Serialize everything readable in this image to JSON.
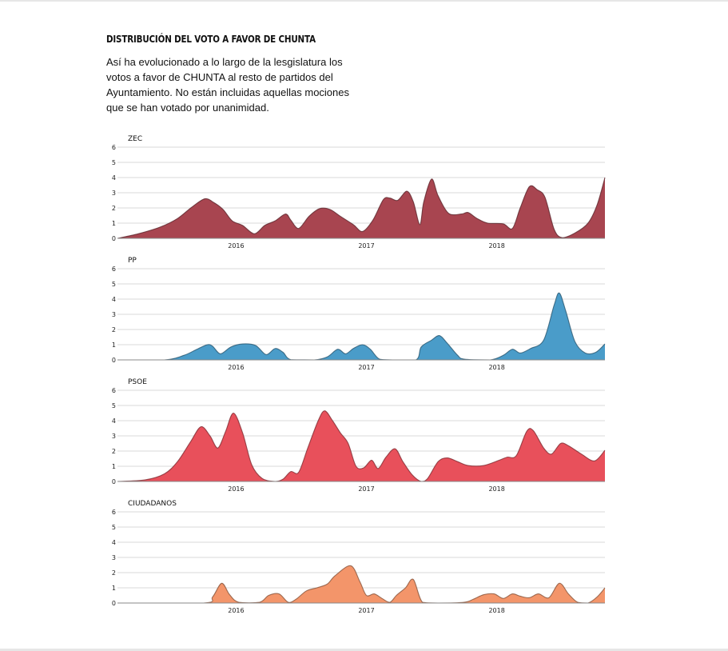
{
  "header": {
    "title": "Distribución del voto a favor de CHUNTA",
    "subtitle": "Así ha evolucionado a lo largo de la lesgislatura los votos a favor de CHUNTA al resto de partidos del Ayuntamiento. No están incluidas aquellas mociones que se han votado por unanimidad."
  },
  "chart_data": {
    "type": "area",
    "x_ticks": [
      {
        "label": "2016",
        "x": 2016.0
      },
      {
        "label": "2017",
        "x": 2017.0
      },
      {
        "label": "2018",
        "x": 2018.0
      }
    ],
    "xlim": [
      2015.09,
      2018.83
    ],
    "ylim": [
      0,
      6
    ],
    "y_ticks": [
      0,
      1,
      2,
      3,
      4,
      5,
      6
    ],
    "grid": true,
    "panels": [
      {
        "name": "ZEC",
        "color": "#a84550",
        "points": [
          [
            2015.09,
            0.0
          ],
          [
            2015.25,
            0.3
          ],
          [
            2015.42,
            0.75
          ],
          [
            2015.55,
            1.3
          ],
          [
            2015.66,
            2.05
          ],
          [
            2015.76,
            2.6
          ],
          [
            2015.83,
            2.35
          ],
          [
            2015.9,
            1.9
          ],
          [
            2015.97,
            1.15
          ],
          [
            2016.05,
            0.85
          ],
          [
            2016.14,
            0.3
          ],
          [
            2016.22,
            0.85
          ],
          [
            2016.3,
            1.15
          ],
          [
            2016.38,
            1.6
          ],
          [
            2016.42,
            1.2
          ],
          [
            2016.48,
            0.65
          ],
          [
            2016.56,
            1.45
          ],
          [
            2016.64,
            1.95
          ],
          [
            2016.72,
            1.9
          ],
          [
            2016.8,
            1.45
          ],
          [
            2016.9,
            0.9
          ],
          [
            2016.97,
            0.45
          ],
          [
            2017.05,
            1.2
          ],
          [
            2017.13,
            2.55
          ],
          [
            2017.18,
            2.65
          ],
          [
            2017.24,
            2.5
          ],
          [
            2017.31,
            3.1
          ],
          [
            2017.36,
            2.4
          ],
          [
            2017.41,
            0.9
          ],
          [
            2017.44,
            2.4
          ],
          [
            2017.5,
            3.9
          ],
          [
            2017.55,
            2.8
          ],
          [
            2017.63,
            1.65
          ],
          [
            2017.73,
            1.6
          ],
          [
            2017.78,
            1.7
          ],
          [
            2017.85,
            1.3
          ],
          [
            2017.93,
            1.0
          ],
          [
            2018.05,
            0.95
          ],
          [
            2018.12,
            0.65
          ],
          [
            2018.18,
            2.0
          ],
          [
            2018.25,
            3.4
          ],
          [
            2018.31,
            3.2
          ],
          [
            2018.37,
            2.7
          ],
          [
            2018.44,
            0.6
          ],
          [
            2018.5,
            0.05
          ],
          [
            2018.6,
            0.35
          ],
          [
            2018.7,
            1.0
          ],
          [
            2018.77,
            2.2
          ],
          [
            2018.83,
            4.0
          ]
        ]
      },
      {
        "name": "PP",
        "color": "#4a9cc9",
        "points": [
          [
            2015.09,
            0.0
          ],
          [
            2015.45,
            0.0
          ],
          [
            2015.6,
            0.3
          ],
          [
            2015.7,
            0.7
          ],
          [
            2015.78,
            1.0
          ],
          [
            2015.82,
            0.9
          ],
          [
            2015.88,
            0.4
          ],
          [
            2015.96,
            0.85
          ],
          [
            2016.05,
            1.05
          ],
          [
            2016.15,
            0.95
          ],
          [
            2016.23,
            0.35
          ],
          [
            2016.3,
            0.75
          ],
          [
            2016.36,
            0.5
          ],
          [
            2016.42,
            0.02
          ],
          [
            2016.6,
            0.0
          ],
          [
            2016.7,
            0.2
          ],
          [
            2016.78,
            0.7
          ],
          [
            2016.84,
            0.4
          ],
          [
            2016.9,
            0.75
          ],
          [
            2016.97,
            1.0
          ],
          [
            2017.03,
            0.7
          ],
          [
            2017.1,
            0.05
          ],
          [
            2017.2,
            0.0
          ],
          [
            2017.38,
            0.0
          ],
          [
            2017.42,
            0.85
          ],
          [
            2017.5,
            1.3
          ],
          [
            2017.56,
            1.6
          ],
          [
            2017.62,
            1.1
          ],
          [
            2017.7,
            0.3
          ],
          [
            2017.75,
            0.05
          ],
          [
            2017.95,
            0.0
          ],
          [
            2018.05,
            0.3
          ],
          [
            2018.12,
            0.7
          ],
          [
            2018.18,
            0.45
          ],
          [
            2018.26,
            0.75
          ],
          [
            2018.36,
            1.3
          ],
          [
            2018.44,
            3.6
          ],
          [
            2018.48,
            4.4
          ],
          [
            2018.53,
            3.2
          ],
          [
            2018.6,
            1.2
          ],
          [
            2018.68,
            0.45
          ],
          [
            2018.76,
            0.5
          ],
          [
            2018.83,
            1.05
          ]
        ]
      },
      {
        "name": "PSOE",
        "color": "#e8505b",
        "points": [
          [
            2015.09,
            0.0
          ],
          [
            2015.3,
            0.1
          ],
          [
            2015.45,
            0.5
          ],
          [
            2015.55,
            1.3
          ],
          [
            2015.65,
            2.6
          ],
          [
            2015.73,
            3.6
          ],
          [
            2015.8,
            3.0
          ],
          [
            2015.86,
            2.2
          ],
          [
            2015.92,
            3.3
          ],
          [
            2015.98,
            4.5
          ],
          [
            2016.05,
            3.2
          ],
          [
            2016.12,
            1.1
          ],
          [
            2016.2,
            0.2
          ],
          [
            2016.3,
            0.0
          ],
          [
            2016.36,
            0.15
          ],
          [
            2016.42,
            0.65
          ],
          [
            2016.48,
            0.6
          ],
          [
            2016.55,
            2.2
          ],
          [
            2016.63,
            4.0
          ],
          [
            2016.68,
            4.65
          ],
          [
            2016.74,
            4.0
          ],
          [
            2016.8,
            3.2
          ],
          [
            2016.86,
            2.5
          ],
          [
            2016.92,
            1.0
          ],
          [
            2016.98,
            0.9
          ],
          [
            2017.04,
            1.4
          ],
          [
            2017.09,
            0.85
          ],
          [
            2017.15,
            1.6
          ],
          [
            2017.22,
            2.15
          ],
          [
            2017.28,
            1.3
          ],
          [
            2017.35,
            0.45
          ],
          [
            2017.42,
            0.0
          ],
          [
            2017.47,
            0.2
          ],
          [
            2017.55,
            1.3
          ],
          [
            2017.62,
            1.55
          ],
          [
            2017.7,
            1.3
          ],
          [
            2017.78,
            1.05
          ],
          [
            2017.9,
            1.05
          ],
          [
            2018.02,
            1.4
          ],
          [
            2018.08,
            1.6
          ],
          [
            2018.15,
            1.7
          ],
          [
            2018.23,
            3.3
          ],
          [
            2018.28,
            3.35
          ],
          [
            2018.36,
            2.2
          ],
          [
            2018.42,
            1.8
          ],
          [
            2018.49,
            2.5
          ],
          [
            2018.55,
            2.35
          ],
          [
            2018.65,
            1.8
          ],
          [
            2018.75,
            1.35
          ],
          [
            2018.83,
            2.05
          ]
        ]
      },
      {
        "name": "CIUDADANOS",
        "color": "#f3956a",
        "points": [
          [
            2015.09,
            0.0
          ],
          [
            2015.75,
            0.0
          ],
          [
            2015.82,
            0.4
          ],
          [
            2015.89,
            1.3
          ],
          [
            2015.95,
            0.55
          ],
          [
            2016.02,
            0.05
          ],
          [
            2016.18,
            0.05
          ],
          [
            2016.25,
            0.5
          ],
          [
            2016.33,
            0.6
          ],
          [
            2016.4,
            0.05
          ],
          [
            2016.46,
            0.25
          ],
          [
            2016.54,
            0.8
          ],
          [
            2016.62,
            1.0
          ],
          [
            2016.7,
            1.25
          ],
          [
            2016.76,
            1.8
          ],
          [
            2016.88,
            2.45
          ],
          [
            2016.95,
            1.4
          ],
          [
            2017.0,
            0.5
          ],
          [
            2017.06,
            0.6
          ],
          [
            2017.12,
            0.3
          ],
          [
            2017.18,
            0.05
          ],
          [
            2017.23,
            0.5
          ],
          [
            2017.3,
            1.0
          ],
          [
            2017.36,
            1.55
          ],
          [
            2017.43,
            0.05
          ],
          [
            2017.55,
            0.0
          ],
          [
            2017.75,
            0.05
          ],
          [
            2017.82,
            0.25
          ],
          [
            2017.9,
            0.55
          ],
          [
            2017.98,
            0.6
          ],
          [
            2018.05,
            0.3
          ],
          [
            2018.12,
            0.6
          ],
          [
            2018.18,
            0.45
          ],
          [
            2018.25,
            0.35
          ],
          [
            2018.32,
            0.6
          ],
          [
            2018.4,
            0.35
          ],
          [
            2018.48,
            1.3
          ],
          [
            2018.55,
            0.6
          ],
          [
            2018.62,
            0.05
          ],
          [
            2018.7,
            0.0
          ],
          [
            2018.77,
            0.4
          ],
          [
            2018.83,
            1.0
          ]
        ]
      }
    ]
  }
}
